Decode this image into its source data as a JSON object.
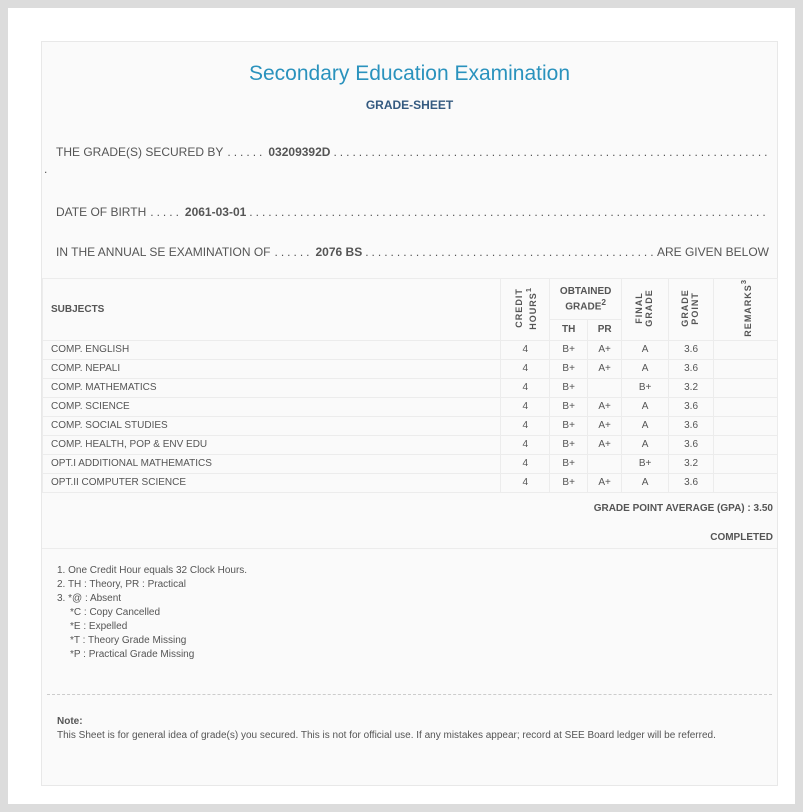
{
  "header": {
    "title": "Secondary Education Examination",
    "subtitle": "GRADE-SHEET"
  },
  "info": {
    "secured_label": "THE GRADE(S) SECURED BY",
    "symbol_no": "03209392D",
    "dob_label": "DATE OF BIRTH",
    "dob": "2061-03-01",
    "exam_label": "IN THE ANNUAL SE EXAMINATION OF",
    "exam_year": "2076 BS",
    "exam_suffix": "ARE GIVEN BELOW"
  },
  "table": {
    "headers": {
      "subjects": "SUBJECTS",
      "credit": "CREDIT HOURS",
      "credit_sup": "1",
      "obtained": "OBTAINED GRADE",
      "obtained_sup": "2",
      "th": "TH",
      "pr": "PR",
      "final": "FINAL GRADE",
      "gp": "GRADE POINT",
      "remarks": "REMARKS",
      "remarks_sup": "3"
    },
    "rows": [
      {
        "subject": "COMP. ENGLISH",
        "credit": "4",
        "th": "B+",
        "pr": "A+",
        "final": "A",
        "gp": "3.6",
        "remarks": ""
      },
      {
        "subject": "COMP. NEPALI",
        "credit": "4",
        "th": "B+",
        "pr": "A+",
        "final": "A",
        "gp": "3.6",
        "remarks": ""
      },
      {
        "subject": "COMP. MATHEMATICS",
        "credit": "4",
        "th": "B+",
        "pr": "",
        "final": "B+",
        "gp": "3.2",
        "remarks": ""
      },
      {
        "subject": "COMP. SCIENCE",
        "credit": "4",
        "th": "B+",
        "pr": "A+",
        "final": "A",
        "gp": "3.6",
        "remarks": ""
      },
      {
        "subject": "COMP. SOCIAL STUDIES",
        "credit": "4",
        "th": "B+",
        "pr": "A+",
        "final": "A",
        "gp": "3.6",
        "remarks": ""
      },
      {
        "subject": "COMP. HEALTH, POP & ENV EDU",
        "credit": "4",
        "th": "B+",
        "pr": "A+",
        "final": "A",
        "gp": "3.6",
        "remarks": ""
      },
      {
        "subject": "OPT.I ADDITIONAL MATHEMATICS",
        "credit": "4",
        "th": "B+",
        "pr": "",
        "final": "B+",
        "gp": "3.2",
        "remarks": ""
      },
      {
        "subject": "OPT.II COMPUTER SCIENCE",
        "credit": "4",
        "th": "B+",
        "pr": "A+",
        "final": "A",
        "gp": "3.6",
        "remarks": ""
      }
    ]
  },
  "gpa": "GRADE POINT AVERAGE (GPA) : 3.50",
  "status": "COMPLETED",
  "footnotes": [
    "1. One Credit Hour equals 32 Clock Hours.",
    "2. TH : Theory, PR : Practical",
    "3. *@ : Absent",
    "*C : Copy Cancelled",
    "*E : Expelled",
    "*T : Theory Grade Missing",
    "*P : Practical Grade Missing"
  ],
  "note": {
    "label": "Note:",
    "text": "This Sheet is for general idea of grade(s) you secured. This is not for official use. If any mistakes appear; record at SEE Board ledger will be referred."
  }
}
